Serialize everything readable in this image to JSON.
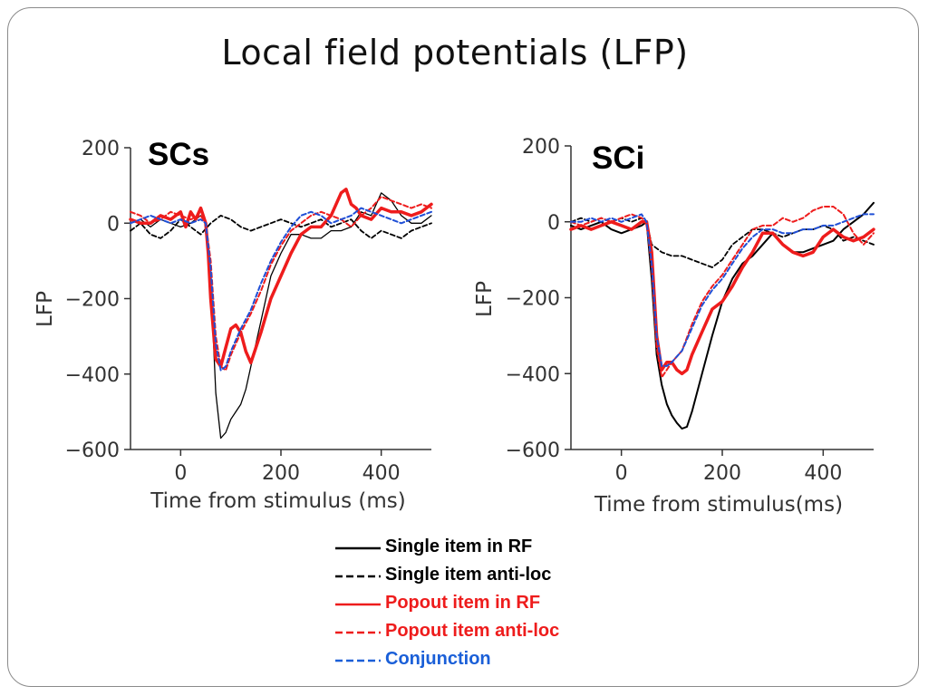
{
  "slide": {
    "title": "Local field potentials (LFP)"
  },
  "colors": {
    "black": "#000000",
    "red": "#ee1c1c",
    "blue": "#1f4fd6",
    "legend_blue": "#1a5fd8"
  },
  "legend": [
    {
      "label": "Single item in RF",
      "color": "#000000",
      "dash": "solid"
    },
    {
      "label": "Single item anti-loc",
      "color": "#000000",
      "dash": "dashed"
    },
    {
      "label": "Popout item in RF",
      "color": "#ee1c1c",
      "dash": "solid"
    },
    {
      "label": "Popout item anti-loc",
      "color": "#ee1c1c",
      "dash": "dashed"
    },
    {
      "label": "Conjunction",
      "color": "#1a5fd8",
      "dash": "dashed"
    }
  ],
  "chart_data": [
    {
      "type": "line",
      "panel_label": "SCs",
      "xlabel": "Time from stimulus (ms)",
      "ylabel": "LFP",
      "xlim": [
        -100,
        500
      ],
      "ylim": [
        -600,
        200
      ],
      "xticks": [
        0,
        200,
        400
      ],
      "yticks": [
        200,
        0,
        -200,
        -400,
        -600
      ],
      "tick_labels_x": [
        "0",
        "200",
        "400"
      ],
      "tick_labels_y": [
        "200",
        "0",
        "−200",
        "−400",
        "−600"
      ],
      "series": [
        {
          "name": "Single item in RF",
          "color": "#000000",
          "dash": "solid",
          "width": 1.3,
          "x": [
            -100,
            -80,
            -60,
            -40,
            -20,
            0,
            20,
            40,
            50,
            60,
            70,
            80,
            90,
            100,
            110,
            120,
            130,
            140,
            160,
            180,
            200,
            220,
            240,
            260,
            280,
            300,
            320,
            340,
            360,
            380,
            400,
            420,
            440,
            460,
            480,
            500
          ],
          "y": [
            0,
            10,
            -10,
            10,
            0,
            -10,
            0,
            20,
            0,
            -150,
            -450,
            -570,
            -555,
            -520,
            -500,
            -480,
            -440,
            -380,
            -260,
            -140,
            -80,
            -30,
            -30,
            -40,
            -40,
            -20,
            -20,
            -10,
            30,
            20,
            80,
            60,
            20,
            0,
            0,
            20
          ]
        },
        {
          "name": "Single item anti-loc",
          "color": "#000000",
          "dash": "dashed",
          "width": 1.8,
          "x": [
            -100,
            -80,
            -60,
            -40,
            -20,
            0,
            20,
            40,
            60,
            80,
            100,
            120,
            140,
            160,
            180,
            200,
            220,
            240,
            260,
            280,
            300,
            320,
            340,
            360,
            380,
            400,
            420,
            440,
            460,
            480,
            500
          ],
          "y": [
            -20,
            0,
            -30,
            -40,
            -20,
            10,
            -10,
            -30,
            0,
            20,
            10,
            -10,
            -20,
            -10,
            0,
            10,
            0,
            -10,
            0,
            10,
            -10,
            0,
            10,
            -20,
            -40,
            -20,
            -30,
            -40,
            -20,
            -10,
            0
          ]
        },
        {
          "name": "Popout item in RF",
          "color": "#ee1c1c",
          "dash": "solid",
          "width": 3.5,
          "x": [
            -100,
            -80,
            -60,
            -40,
            -20,
            0,
            10,
            20,
            30,
            40,
            50,
            55,
            60,
            70,
            80,
            90,
            100,
            110,
            120,
            130,
            140,
            160,
            180,
            200,
            220,
            240,
            260,
            280,
            300,
            320,
            330,
            340,
            350,
            360,
            380,
            400,
            420,
            440,
            460,
            480,
            500
          ],
          "y": [
            10,
            0,
            0,
            20,
            10,
            30,
            -10,
            30,
            10,
            40,
            0,
            -80,
            -200,
            -360,
            -380,
            -330,
            -280,
            -270,
            -290,
            -340,
            -370,
            -290,
            -200,
            -140,
            -80,
            -30,
            -10,
            -10,
            20,
            80,
            90,
            50,
            40,
            20,
            10,
            40,
            30,
            30,
            20,
            30,
            50
          ]
        },
        {
          "name": "Popout item anti-loc",
          "color": "#ee1c1c",
          "dash": "dashed",
          "width": 2,
          "x": [
            -100,
            -80,
            -60,
            -40,
            -20,
            0,
            20,
            40,
            50,
            60,
            70,
            80,
            90,
            100,
            120,
            140,
            160,
            180,
            200,
            220,
            240,
            260,
            280,
            300,
            320,
            340,
            360,
            380,
            400,
            420,
            440,
            460,
            480,
            500
          ],
          "y": [
            30,
            20,
            0,
            10,
            30,
            20,
            10,
            20,
            0,
            -100,
            -300,
            -380,
            -390,
            -350,
            -290,
            -240,
            -180,
            -110,
            -60,
            -20,
            0,
            20,
            30,
            20,
            10,
            -10,
            20,
            40,
            70,
            60,
            50,
            40,
            50,
            40
          ]
        },
        {
          "name": "Conjunction",
          "color": "#1f4fd6",
          "dash": "dashed",
          "width": 2,
          "x": [
            -100,
            -80,
            -60,
            -40,
            -20,
            0,
            20,
            40,
            50,
            60,
            70,
            80,
            90,
            100,
            120,
            140,
            160,
            180,
            200,
            220,
            240,
            260,
            280,
            300,
            320,
            340,
            360,
            380,
            400,
            420,
            440,
            460,
            480,
            500
          ],
          "y": [
            0,
            10,
            20,
            10,
            0,
            10,
            0,
            10,
            0,
            -120,
            -320,
            -390,
            -380,
            -340,
            -280,
            -230,
            -160,
            -100,
            -50,
            -10,
            20,
            30,
            20,
            0,
            10,
            20,
            40,
            30,
            20,
            10,
            0,
            10,
            20,
            30
          ]
        }
      ]
    },
    {
      "type": "line",
      "panel_label": "SCi",
      "xlabel": "Time from stimulus(ms)",
      "ylabel": "LFP",
      "xlim": [
        -100,
        500
      ],
      "ylim": [
        -600,
        200
      ],
      "xticks": [
        0,
        200,
        400
      ],
      "yticks": [
        200,
        0,
        -200,
        -400,
        -600
      ],
      "tick_labels_x": [
        "0",
        "200",
        "400"
      ],
      "tick_labels_y": [
        "200",
        "0",
        "−200",
        "−400",
        "−600"
      ],
      "series": [
        {
          "name": "Single item in RF",
          "color": "#000000",
          "dash": "solid",
          "width": 2,
          "x": [
            -100,
            -80,
            -60,
            -40,
            -20,
            0,
            20,
            40,
            50,
            60,
            70,
            80,
            90,
            100,
            110,
            120,
            130,
            140,
            160,
            180,
            200,
            220,
            240,
            260,
            280,
            300,
            320,
            340,
            360,
            380,
            400,
            420,
            440,
            460,
            480,
            500
          ],
          "y": [
            -10,
            -20,
            -10,
            0,
            -20,
            -30,
            -20,
            -10,
            0,
            -150,
            -350,
            -430,
            -480,
            -510,
            -530,
            -545,
            -540,
            -500,
            -400,
            -300,
            -210,
            -150,
            -110,
            -90,
            -60,
            -30,
            -60,
            -80,
            -80,
            -70,
            -60,
            -50,
            -20,
            0,
            20,
            50
          ]
        },
        {
          "name": "Single item anti-loc",
          "color": "#000000",
          "dash": "dashed",
          "width": 1.8,
          "x": [
            -100,
            -80,
            -60,
            -40,
            -20,
            0,
            20,
            40,
            50,
            60,
            80,
            100,
            120,
            140,
            160,
            180,
            200,
            220,
            240,
            260,
            280,
            300,
            320,
            340,
            360,
            380,
            400,
            420,
            440,
            460,
            480,
            500
          ],
          "y": [
            0,
            10,
            0,
            10,
            0,
            10,
            0,
            10,
            0,
            -60,
            -80,
            -90,
            -90,
            -100,
            -110,
            -120,
            -100,
            -60,
            -40,
            -20,
            -20,
            -30,
            -40,
            -30,
            -20,
            -20,
            -10,
            -20,
            -50,
            -40,
            -50,
            -60
          ]
        },
        {
          "name": "Popout item in RF",
          "color": "#ee1c1c",
          "dash": "solid",
          "width": 3.5,
          "x": [
            -100,
            -80,
            -60,
            -40,
            -20,
            0,
            20,
            40,
            50,
            60,
            70,
            80,
            90,
            100,
            110,
            120,
            130,
            140,
            160,
            180,
            200,
            220,
            240,
            260,
            280,
            300,
            320,
            340,
            360,
            380,
            400,
            420,
            440,
            460,
            480,
            500
          ],
          "y": [
            -20,
            -10,
            -20,
            -10,
            0,
            -10,
            -20,
            0,
            0,
            -80,
            -300,
            -390,
            -370,
            -370,
            -390,
            -400,
            -390,
            -350,
            -290,
            -230,
            -210,
            -170,
            -120,
            -80,
            -30,
            -30,
            -60,
            -80,
            -90,
            -80,
            -40,
            -20,
            -40,
            -50,
            -40,
            -20
          ]
        },
        {
          "name": "Popout item anti-loc",
          "color": "#ee1c1c",
          "dash": "dashed",
          "width": 2,
          "x": [
            -100,
            -80,
            -60,
            -40,
            -20,
            0,
            20,
            40,
            50,
            60,
            70,
            80,
            90,
            100,
            120,
            140,
            160,
            180,
            200,
            220,
            240,
            260,
            280,
            300,
            320,
            340,
            360,
            380,
            400,
            420,
            440,
            460,
            480,
            500
          ],
          "y": [
            0,
            -10,
            0,
            10,
            0,
            10,
            20,
            10,
            0,
            -120,
            -330,
            -410,
            -390,
            -370,
            -340,
            -270,
            -210,
            -170,
            -140,
            -100,
            -60,
            -20,
            -10,
            -10,
            10,
            0,
            10,
            30,
            40,
            40,
            20,
            -30,
            -60,
            -30
          ]
        },
        {
          "name": "Conjunction",
          "color": "#1f4fd6",
          "dash": "dashed",
          "width": 2,
          "x": [
            -100,
            -80,
            -60,
            -40,
            -20,
            0,
            20,
            40,
            50,
            60,
            70,
            80,
            90,
            100,
            120,
            140,
            160,
            180,
            200,
            220,
            240,
            260,
            280,
            300,
            320,
            340,
            360,
            380,
            400,
            420,
            440,
            460,
            480,
            500
          ],
          "y": [
            0,
            0,
            10,
            0,
            10,
            0,
            10,
            20,
            0,
            -110,
            -300,
            -380,
            -380,
            -370,
            -340,
            -280,
            -220,
            -180,
            -150,
            -110,
            -70,
            -40,
            -20,
            -20,
            -30,
            -30,
            -20,
            -20,
            -10,
            -10,
            0,
            10,
            20,
            20
          ]
        }
      ]
    }
  ]
}
